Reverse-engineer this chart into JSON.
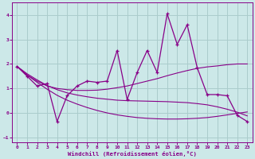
{
  "xlabel": "Windchill (Refroidissement éolien,°C)",
  "bg_color": "#cce8e8",
  "grid_color": "#aacccc",
  "line_color": "#880088",
  "x_data": [
    0,
    1,
    2,
    3,
    4,
    5,
    6,
    7,
    8,
    9,
    10,
    11,
    12,
    13,
    14,
    15,
    16,
    17,
    18,
    19,
    20,
    21,
    22,
    23
  ],
  "y_curve": [
    1.9,
    1.5,
    1.1,
    1.2,
    -0.35,
    0.7,
    1.1,
    1.3,
    1.25,
    1.3,
    2.55,
    0.55,
    1.65,
    2.55,
    1.65,
    4.05,
    2.8,
    3.6,
    1.85,
    0.75,
    0.75,
    0.7,
    -0.1,
    -0.35
  ],
  "y_trend1": [
    1.9,
    1.55,
    1.3,
    1.1,
    1.0,
    0.95,
    0.92,
    0.92,
    0.93,
    0.97,
    1.03,
    1.1,
    1.2,
    1.3,
    1.4,
    1.52,
    1.63,
    1.73,
    1.82,
    1.88,
    1.92,
    1.97,
    2.0,
    2.0
  ],
  "y_trend2": [
    1.9,
    1.6,
    1.35,
    1.12,
    0.95,
    0.82,
    0.73,
    0.66,
    0.6,
    0.56,
    0.52,
    0.5,
    0.49,
    0.48,
    0.47,
    0.46,
    0.44,
    0.42,
    0.38,
    0.33,
    0.25,
    0.15,
    0.03,
    -0.12
  ],
  "y_trend3": [
    1.9,
    1.55,
    1.25,
    0.97,
    0.72,
    0.52,
    0.36,
    0.22,
    0.1,
    0.0,
    -0.08,
    -0.14,
    -0.19,
    -0.22,
    -0.24,
    -0.25,
    -0.25,
    -0.24,
    -0.22,
    -0.19,
    -0.14,
    -0.08,
    -0.02,
    0.04
  ],
  "ylim": [
    -1.2,
    4.5
  ],
  "xlim": [
    -0.5,
    23.5
  ],
  "yticks": [
    -1,
    0,
    1,
    2,
    3,
    4
  ],
  "xticks": [
    0,
    1,
    2,
    3,
    4,
    5,
    6,
    7,
    8,
    9,
    10,
    11,
    12,
    13,
    14,
    15,
    16,
    17,
    18,
    19,
    20,
    21,
    22,
    23
  ]
}
